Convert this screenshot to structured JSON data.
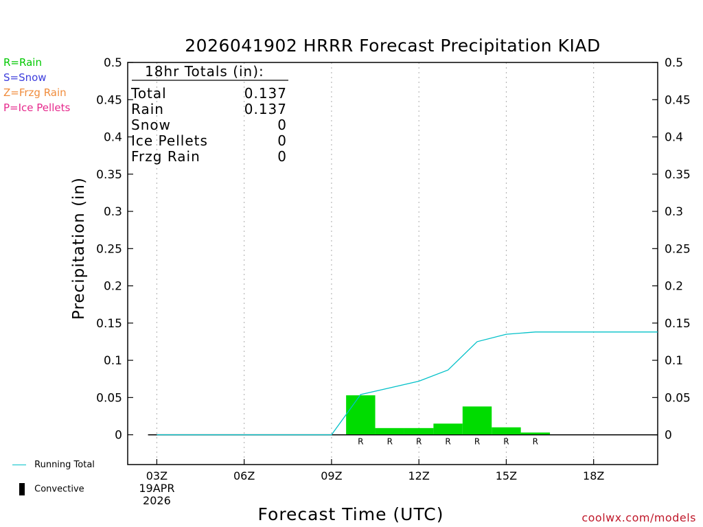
{
  "title": "2026041902 HRRR Forecast Precipitation KIAD",
  "legend": {
    "rain": {
      "label": "R=Rain",
      "color": "#00c800"
    },
    "snow": {
      "label": "S=Snow",
      "color": "#3c3cdc"
    },
    "frzg_rain": {
      "label": "Z=Frzg Rain",
      "color": "#f08c3c"
    },
    "ice_pellets": {
      "label": "P=Ice Pellets",
      "color": "#e6288c"
    }
  },
  "totals": {
    "header": "18hr Totals (in):",
    "rows": [
      {
        "label": "Total",
        "value": "0.137"
      },
      {
        "label": "Rain",
        "value": "0.137"
      },
      {
        "label": "Snow",
        "value": "0"
      },
      {
        "label": "Ice Pellets",
        "value": "0"
      },
      {
        "label": "Frzg Rain",
        "value": "0"
      }
    ]
  },
  "footer_legend": {
    "running_total": "Running Total",
    "convective": "Convective",
    "running_total_color": "#00c0c8",
    "bar_color": "#00dc00"
  },
  "credit": "coolwx.com/models",
  "chart_data": {
    "type": "bar",
    "title": "2026041902 HRRR Forecast Precipitation KIAD",
    "xlabel": "Forecast Time (UTC)",
    "ylabel": "Precipitation (in)",
    "ylim": [
      -0.04,
      0.5
    ],
    "xlim": [
      2.0,
      20.2
    ],
    "y_ticks": [
      "0",
      "0.05",
      "0.1",
      "0.15",
      "0.2",
      "0.25",
      "0.3",
      "0.35",
      "0.4",
      "0.45",
      "0.5"
    ],
    "y_tick_values": [
      0,
      0.05,
      0.1,
      0.15,
      0.2,
      0.25,
      0.3,
      0.35,
      0.4,
      0.45,
      0.5
    ],
    "x_ticks": [
      {
        "hour": 3,
        "label": "03Z"
      },
      {
        "hour": 6,
        "label": "06Z"
      },
      {
        "hour": 9,
        "label": "09Z"
      },
      {
        "hour": 12,
        "label": "12Z"
      },
      {
        "hour": 15,
        "label": "15Z"
      },
      {
        "hour": 18,
        "label": "18Z"
      }
    ],
    "date_label": [
      "19APR",
      "2026"
    ],
    "hourly_precip": [
      {
        "hour": 10,
        "value": 0.053,
        "type": "R"
      },
      {
        "hour": 11,
        "value": 0.009,
        "type": "R"
      },
      {
        "hour": 12,
        "value": 0.009,
        "type": "R"
      },
      {
        "hour": 13,
        "value": 0.015,
        "type": "R"
      },
      {
        "hour": 14,
        "value": 0.038,
        "type": "R"
      },
      {
        "hour": 15,
        "value": 0.01,
        "type": "R"
      },
      {
        "hour": 16,
        "value": 0.003,
        "type": "R"
      }
    ],
    "running_total": {
      "hours": [
        3,
        4,
        5,
        6,
        7,
        8,
        9,
        10,
        11,
        12,
        13,
        14,
        15,
        16,
        17,
        18,
        19,
        20.2
      ],
      "values": [
        0,
        0,
        0,
        0,
        0,
        0,
        0,
        0.054,
        0.063,
        0.072,
        0.087,
        0.125,
        0.135,
        0.138,
        0.138,
        0.138,
        0.138,
        0.138
      ]
    }
  }
}
